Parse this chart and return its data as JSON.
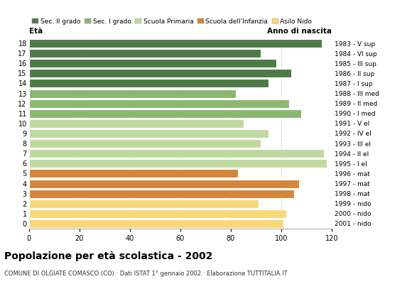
{
  "ages": [
    0,
    1,
    2,
    3,
    4,
    5,
    6,
    7,
    8,
    9,
    10,
    11,
    12,
    13,
    14,
    15,
    16,
    17,
    18
  ],
  "values": [
    101,
    102,
    91,
    105,
    107,
    83,
    118,
    117,
    92,
    95,
    85,
    108,
    103,
    82,
    95,
    104,
    98,
    92,
    116
  ],
  "right_labels": [
    "2001 - nido",
    "2000 - nido",
    "1999 - nido",
    "1998 - mat",
    "1997 - mat",
    "1996 - mat",
    "1995 - I el",
    "1994 - II el",
    "1993 - III el",
    "1992 - IV el",
    "1991 - V el",
    "1990 - I med",
    "1989 - II med",
    "1988 - III med",
    "1987 - I sup",
    "1986 - II sup",
    "1985 - III sup",
    "1984 - VI sup",
    "1983 - V sup"
  ],
  "bar_colors": [
    "#f9d87a",
    "#f9d87a",
    "#f9d87a",
    "#d4873c",
    "#d4873c",
    "#d4873c",
    "#c0d9a0",
    "#c0d9a0",
    "#c0d9a0",
    "#c0d9a0",
    "#c0d9a0",
    "#8ab870",
    "#8ab870",
    "#8ab870",
    "#4e7a47",
    "#4e7a47",
    "#4e7a47",
    "#4e7a47",
    "#4e7a47"
  ],
  "title": "Popolazione per età scolastica - 2002",
  "subtitle": "COMUNE DI OLGIATE COMASCO (CO) · Dati ISTAT 1° gennaio 2002 · Elaborazione TUTTITALIA.IT",
  "xlabel_left": "Età",
  "xlabel_right": "Anno di nascita",
  "xlim": [
    0,
    120
  ],
  "xticks": [
    0,
    20,
    40,
    60,
    80,
    100,
    120
  ],
  "legend_labels": [
    "Sec. II grado",
    "Sec. I grado",
    "Scuola Primaria",
    "Scuola dell'Infanzia",
    "Asilo Nido"
  ],
  "legend_colors": [
    "#4e7a47",
    "#8ab870",
    "#c0d9a0",
    "#d4873c",
    "#f9d87a"
  ],
  "background_color": "#ffffff",
  "grid_color": "#bbbbbb"
}
